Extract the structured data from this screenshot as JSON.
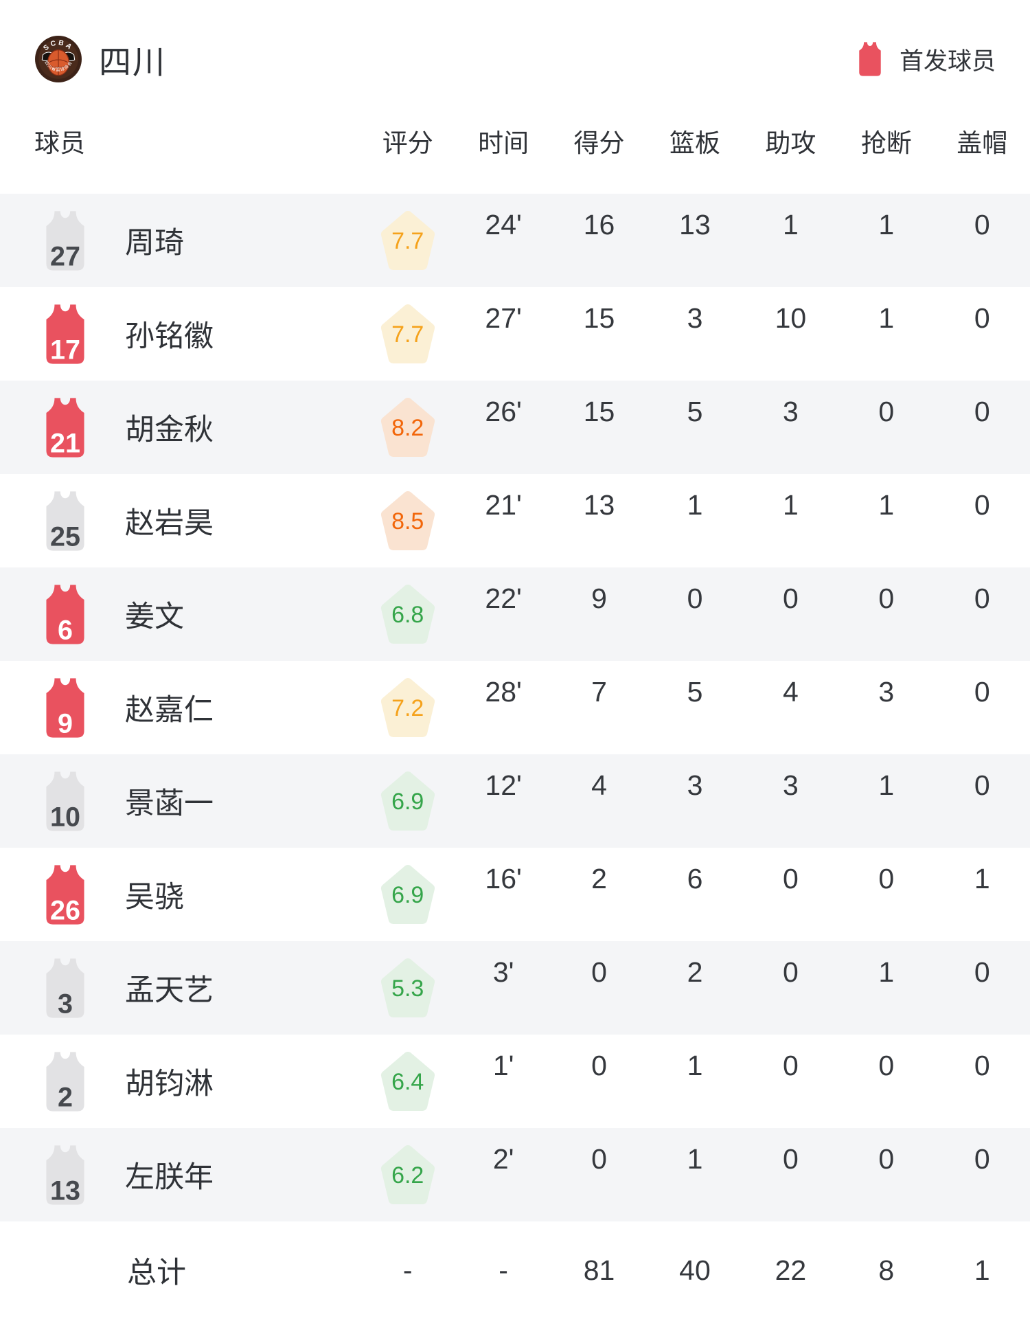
{
  "header": {
    "team_name": "四川",
    "logo": {
      "top_text": "SCBA",
      "bottom_text": "四川省篮球协会"
    },
    "legend": {
      "icon": "starter-jersey-icon",
      "label": "首发球员",
      "color": "#E9525F"
    }
  },
  "table": {
    "player_col_label": "球员",
    "stat_col_labels": [
      "评分",
      "时间",
      "得分",
      "篮板",
      "助攻",
      "抢断",
      "盖帽"
    ],
    "rows": [
      {
        "number": "27",
        "name": "周琦",
        "starter": false,
        "rating": "7.7",
        "rating_level": "yellow",
        "time": "24'",
        "points": "16",
        "rebounds": "13",
        "assists": "1",
        "steals": "1",
        "blocks": "0"
      },
      {
        "number": "17",
        "name": "孙铭徽",
        "starter": true,
        "rating": "7.7",
        "rating_level": "yellow",
        "time": "27'",
        "points": "15",
        "rebounds": "3",
        "assists": "10",
        "steals": "1",
        "blocks": "0"
      },
      {
        "number": "21",
        "name": "胡金秋",
        "starter": true,
        "rating": "8.2",
        "rating_level": "orange",
        "time": "26'",
        "points": "15",
        "rebounds": "5",
        "assists": "3",
        "steals": "0",
        "blocks": "0"
      },
      {
        "number": "25",
        "name": "赵岩昊",
        "starter": false,
        "rating": "8.5",
        "rating_level": "orange",
        "time": "21'",
        "points": "13",
        "rebounds": "1",
        "assists": "1",
        "steals": "1",
        "blocks": "0"
      },
      {
        "number": "6",
        "name": "姜文",
        "starter": true,
        "rating": "6.8",
        "rating_level": "green",
        "time": "22'",
        "points": "9",
        "rebounds": "0",
        "assists": "0",
        "steals": "0",
        "blocks": "0"
      },
      {
        "number": "9",
        "name": "赵嘉仁",
        "starter": true,
        "rating": "7.2",
        "rating_level": "yellow",
        "time": "28'",
        "points": "7",
        "rebounds": "5",
        "assists": "4",
        "steals": "3",
        "blocks": "0"
      },
      {
        "number": "10",
        "name": "景菡一",
        "starter": false,
        "rating": "6.9",
        "rating_level": "green",
        "time": "12'",
        "points": "4",
        "rebounds": "3",
        "assists": "3",
        "steals": "1",
        "blocks": "0"
      },
      {
        "number": "26",
        "name": "吴骁",
        "starter": true,
        "rating": "6.9",
        "rating_level": "green",
        "time": "16'",
        "points": "2",
        "rebounds": "6",
        "assists": "0",
        "steals": "0",
        "blocks": "1"
      },
      {
        "number": "3",
        "name": "孟天艺",
        "starter": false,
        "rating": "5.3",
        "rating_level": "green",
        "time": "3'",
        "points": "0",
        "rebounds": "2",
        "assists": "0",
        "steals": "1",
        "blocks": "0"
      },
      {
        "number": "2",
        "name": "胡钧淋",
        "starter": false,
        "rating": "6.4",
        "rating_level": "green",
        "time": "1'",
        "points": "0",
        "rebounds": "1",
        "assists": "0",
        "steals": "0",
        "blocks": "0"
      },
      {
        "number": "13",
        "name": "左朕年",
        "starter": false,
        "rating": "6.2",
        "rating_level": "green",
        "time": "2'",
        "points": "0",
        "rebounds": "1",
        "assists": "0",
        "steals": "0",
        "blocks": "0"
      }
    ],
    "totals": {
      "label": "总计",
      "rating": "-",
      "time": "-",
      "points": "81",
      "rebounds": "40",
      "assists": "22",
      "steals": "8",
      "blocks": "1"
    }
  },
  "colors": {
    "starter_jersey": "#E9525F",
    "bench_jersey": "#E2E2E4",
    "row_alt_bg": "#F4F5F7",
    "rating_yellow": "#F5A21B",
    "rating_yellow_bg": "#FBF0D5",
    "rating_orange": "#F2660A",
    "rating_orange_bg": "#FAE3D1",
    "rating_green": "#35A54A",
    "rating_green_bg": "#E3F1E4"
  }
}
